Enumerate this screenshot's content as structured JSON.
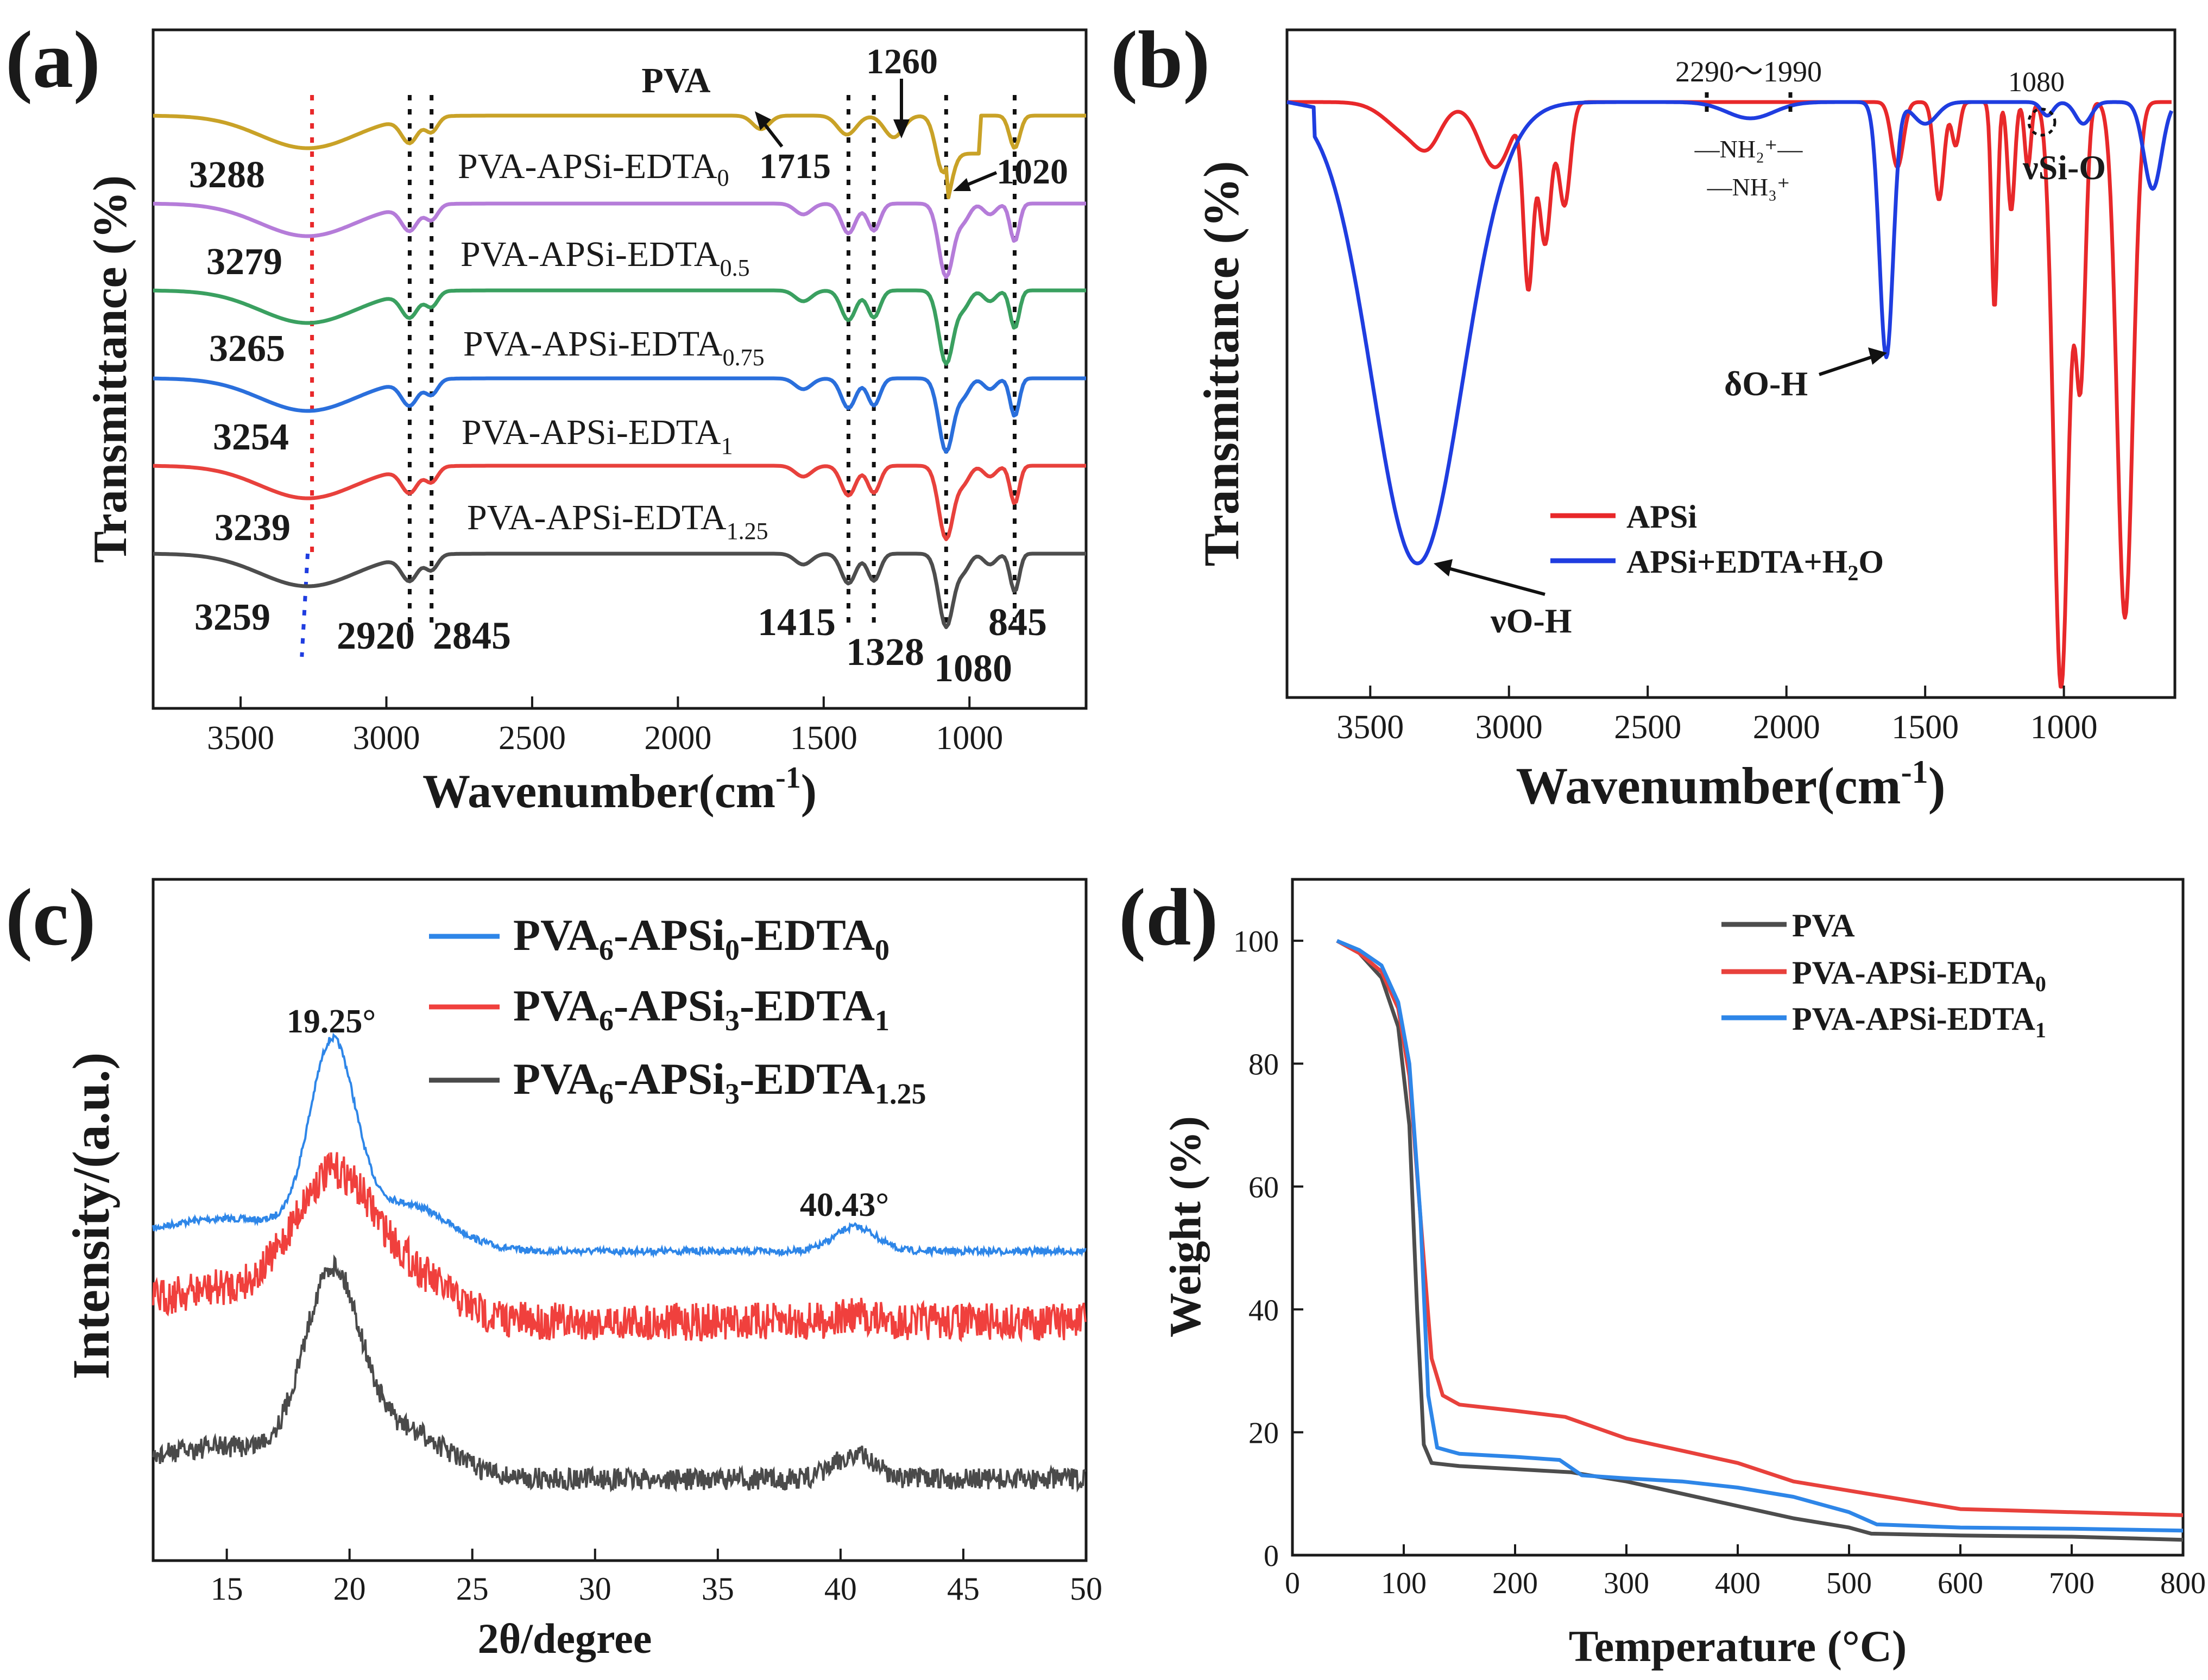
{
  "colors": {
    "pva": "#c9a227",
    "edta0": "#b57cd9",
    "edta05": "#3aa060",
    "edta075": "#2a6fdc",
    "edta1": "#e8413c",
    "edta125": "#4d4d4d",
    "red": "#e8282a",
    "blue": "#1f3de0",
    "xrd_blue": "#2e86e8",
    "xrd_red": "#f0403d",
    "xrd_gray": "#4a4a4a"
  },
  "chart_data": [
    {
      "panel": "(a)",
      "type": "line",
      "xlabel": "Wavenumber(cm⁻¹)",
      "ylabel": "Transmittance (%)",
      "xlim": [
        3800,
        600
      ],
      "x_reversed": true,
      "xticks": [
        "3500",
        "3000",
        "2500",
        "2000",
        "1500",
        "1000"
      ],
      "series": [
        {
          "name": "PVA",
          "label": "PVA",
          "oh_peak": "3288"
        },
        {
          "name": "PVA-APSi-EDTA0",
          "label_main": "PVA-APSi-EDTA",
          "label_sub": "0",
          "oh_peak": "3279"
        },
        {
          "name": "PVA-APSi-EDTA0.5",
          "label_main": "PVA-APSi-EDTA",
          "label_sub": "0.5",
          "oh_peak": "3265"
        },
        {
          "name": "PVA-APSi-EDTA0.75",
          "label_main": "PVA-APSi-EDTA",
          "label_sub": "0.75",
          "oh_peak": "3254"
        },
        {
          "name": "PVA-APSi-EDTA1",
          "label_main": "PVA-APSi-EDTA",
          "label_sub": "1",
          "oh_peak": "3239"
        },
        {
          "name": "PVA-APSi-EDTA1.25",
          "label_main": "PVA-APSi-EDTA",
          "label_sub": "1.25",
          "oh_peak": "3259"
        }
      ],
      "annotations": {
        "a1715": "1715",
        "a1260": "1260",
        "a1020": "1020",
        "a2920": "2920",
        "a2845": "2845",
        "a1415": "1415",
        "a1328": "1328",
        "a1080": "1080",
        "a845": "845"
      },
      "dotted_lines_at": [
        2920,
        2845,
        1415,
        1328,
        1080,
        845
      ]
    },
    {
      "panel": "(b)",
      "type": "line",
      "xlabel": "Wavenumber(cm⁻¹)",
      "ylabel": "Transmittance (%)",
      "xlim": [
        3800,
        600
      ],
      "x_reversed": true,
      "xticks": [
        "3500",
        "3000",
        "2500",
        "2000",
        "1500",
        "1000"
      ],
      "series": [
        {
          "name": "APSi",
          "legend": "APSi"
        },
        {
          "name": "APSi+EDTA+H2O",
          "legend_main": "APSi+EDTA+H",
          "legend_sub": "2",
          "legend_tail": "O"
        }
      ],
      "annotations": {
        "range": "2290～1990",
        "nh2": "—NH₂⁺—",
        "nh3": "—NH₃⁺",
        "a1080": "1080",
        "sio": "νSi-O",
        "doh": "δO-H",
        "voh": "νO-H"
      }
    },
    {
      "panel": "(c)",
      "type": "line",
      "xlabel": "2θ/degree",
      "ylabel": "Intensity/(a.u.)",
      "xlim": [
        12,
        50
      ],
      "xticks": [
        "15",
        "20",
        "25",
        "30",
        "35",
        "40",
        "45",
        "50"
      ],
      "series": [
        {
          "name": "PVA6-APSi0-EDTA0",
          "peaks_deg": [
            19.25,
            40.43
          ]
        },
        {
          "name": "PVA6-APSi3-EDTA1",
          "peaks_deg": [
            19.25
          ]
        },
        {
          "name": "PVA6-APSi3-EDTA1.25",
          "peaks_deg": [
            19.25,
            40.43
          ]
        }
      ],
      "legend": [
        {
          "p1": "PVA",
          "s1": "6",
          "p2": "-APSi",
          "s2": "0",
          "p3": "-EDTA",
          "s3": "0"
        },
        {
          "p1": "PVA",
          "s1": "6",
          "p2": "-APSi",
          "s2": "3",
          "p3": "-EDTA",
          "s3": "1"
        },
        {
          "p1": "PVA",
          "s1": "6",
          "p2": "-APSi",
          "s2": "3",
          "p3": "-EDTA",
          "s3": "1.25"
        }
      ],
      "annotations": {
        "p1": "19.25°",
        "p2": "40.43°"
      }
    },
    {
      "panel": "(d)",
      "type": "line",
      "xlabel": "Temperature (°C)",
      "ylabel": "Weight (%)",
      "xlim": [
        0,
        800
      ],
      "ylim": [
        0,
        110
      ],
      "xticks": [
        "0",
        "100",
        "200",
        "300",
        "400",
        "500",
        "600",
        "700",
        "800"
      ],
      "yticks": [
        "0",
        "20",
        "40",
        "60",
        "80",
        "100"
      ],
      "legend": [
        {
          "main": "PVA",
          "sub": ""
        },
        {
          "main": "PVA-APSi-EDTA",
          "sub": "0"
        },
        {
          "main": "PVA-APSi-EDTA",
          "sub": "1"
        }
      ],
      "series": [
        {
          "name": "PVA",
          "x": [
            40,
            60,
            80,
            95,
            105,
            112,
            118,
            125,
            150,
            200,
            250,
            300,
            350,
            400,
            450,
            500,
            520,
            600,
            700,
            800
          ],
          "y": [
            100,
            98,
            94,
            86,
            70,
            40,
            18,
            15,
            14.5,
            14,
            13.5,
            12,
            10,
            8,
            6,
            4.5,
            3.5,
            3.2,
            3,
            2.5
          ]
        },
        {
          "name": "PVA-APSi-EDTA0",
          "x": [
            40,
            60,
            80,
            95,
            105,
            115,
            125,
            135,
            150,
            200,
            245,
            300,
            350,
            400,
            450,
            500,
            550,
            600,
            700,
            800
          ],
          "y": [
            100,
            98,
            95,
            89,
            78,
            55,
            32,
            26,
            24.5,
            23.5,
            22.5,
            19,
            17,
            15,
            12,
            10.5,
            9,
            7.5,
            7,
            6.5
          ]
        },
        {
          "name": "PVA-APSi-EDTA1",
          "x": [
            40,
            60,
            80,
            95,
            105,
            115,
            122,
            130,
            150,
            200,
            240,
            260,
            300,
            350,
            400,
            450,
            500,
            525,
            600,
            700,
            800
          ],
          "y": [
            100,
            98.5,
            96,
            90,
            80,
            55,
            26,
            17.5,
            16.5,
            16,
            15.5,
            13,
            12.5,
            12,
            11,
            9.5,
            7,
            5,
            4.5,
            4.3,
            4
          ]
        }
      ]
    }
  ]
}
